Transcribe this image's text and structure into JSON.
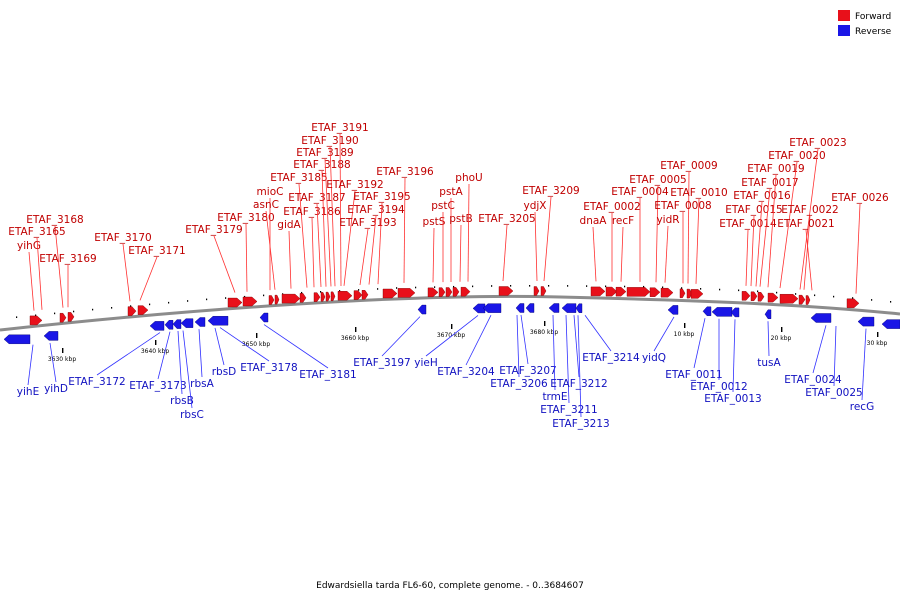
{
  "legend": [
    {
      "label": "Forward",
      "color": "#e8101a"
    },
    {
      "label": "Reverse",
      "color": "#1a16e6"
    }
  ],
  "caption": "Edwardsiella tarda FL6-60, complete genome. - 0..3684607",
  "colors": {
    "forward": "#e8101a",
    "reverse": "#1a16e6",
    "backbone": "#8c8c8c",
    "forward_label": "#c00000",
    "reverse_label": "#1010c0"
  },
  "ticks": [
    "3630 kbp",
    "3640 kbp",
    "3650 kbp",
    "3660 kbp",
    "3670 kbp",
    "3680 kbp",
    "10 kbp",
    "20 kbp",
    "30 kbp"
  ],
  "forward_labels": [
    "ETAF_3168",
    "yihG",
    "ETAF_3165",
    "ETAF_3169",
    "ETAF_3170",
    "ETAF_3171",
    "ETAF_3179",
    "ETAF_3180",
    "mioC",
    "asnC",
    "gidA",
    "ETAF_3185",
    "ETAF_3186",
    "ETAF_3187",
    "ETAF_3188",
    "ETAF_3189",
    "ETAF_3190",
    "ETAF_3191",
    "ETAF_3192",
    "ETAF_3193",
    "ETAF_3194",
    "ETAF_3195",
    "ETAF_3196",
    "pstS",
    "pstC",
    "pstA",
    "pstB",
    "phoU",
    "ETAF_3205",
    "ydjX",
    "ETAF_3209",
    "dnaA",
    "ETAF_0002",
    "recF",
    "ETAF_0004",
    "ETAF_0005",
    "ETAF_0009",
    "yidR",
    "ETAF_0008",
    "ETAF_0010",
    "ETAF_0014",
    "ETAF_0015",
    "ETAF_0016",
    "ETAF_0017",
    "ETAF_0019",
    "ETAF_0020",
    "ETAF_0023",
    "ETAF_0022",
    "ETAF_0021",
    "ETAF_0026"
  ],
  "reverse_labels": [
    "yihE",
    "yihD",
    "ETAF_3172",
    "ETAF_3173",
    "rbsB",
    "rbsC",
    "rbsA",
    "rbsD",
    "ETAF_3178",
    "ETAF_3181",
    "ETAF_3197",
    "yieH",
    "ETAF_3204",
    "ETAF_3207",
    "ETAF_3206",
    "trmE",
    "ETAF_3211",
    "ETAF_3213",
    "ETAF_3212",
    "ETAF_3214",
    "yidQ",
    "ETAF_0011",
    "ETAF_0012",
    "ETAF_0013",
    "tusA",
    "ETAF_0024",
    "ETAF_0025",
    "recG"
  ]
}
